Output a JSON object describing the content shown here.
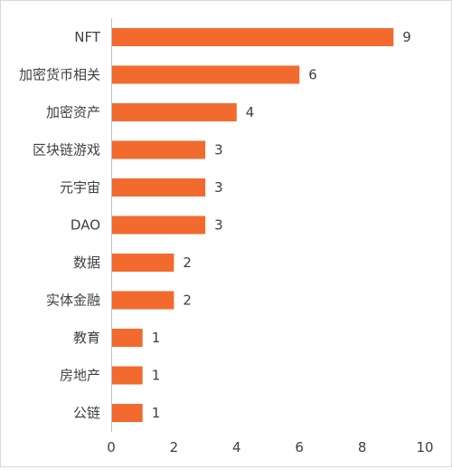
{
  "chart_data": {
    "type": "bar",
    "orientation": "horizontal",
    "categories": [
      "NFT",
      "加密货币相关",
      "加密资产",
      "区块链游戏",
      "元宇宙",
      "DAO",
      "数据",
      "实体金融",
      "教育",
      "房地产",
      "公链"
    ],
    "values": [
      9,
      6,
      4,
      3,
      3,
      3,
      2,
      2,
      1,
      1,
      1
    ],
    "xlim": [
      0,
      10
    ],
    "xticks": [
      0,
      2,
      4,
      6,
      8,
      10
    ],
    "grid": false,
    "legend": "none",
    "data_labels": true,
    "bar_color": "#f26a2e",
    "axis_color": "#bfbfbf",
    "text_color": "#404040"
  }
}
